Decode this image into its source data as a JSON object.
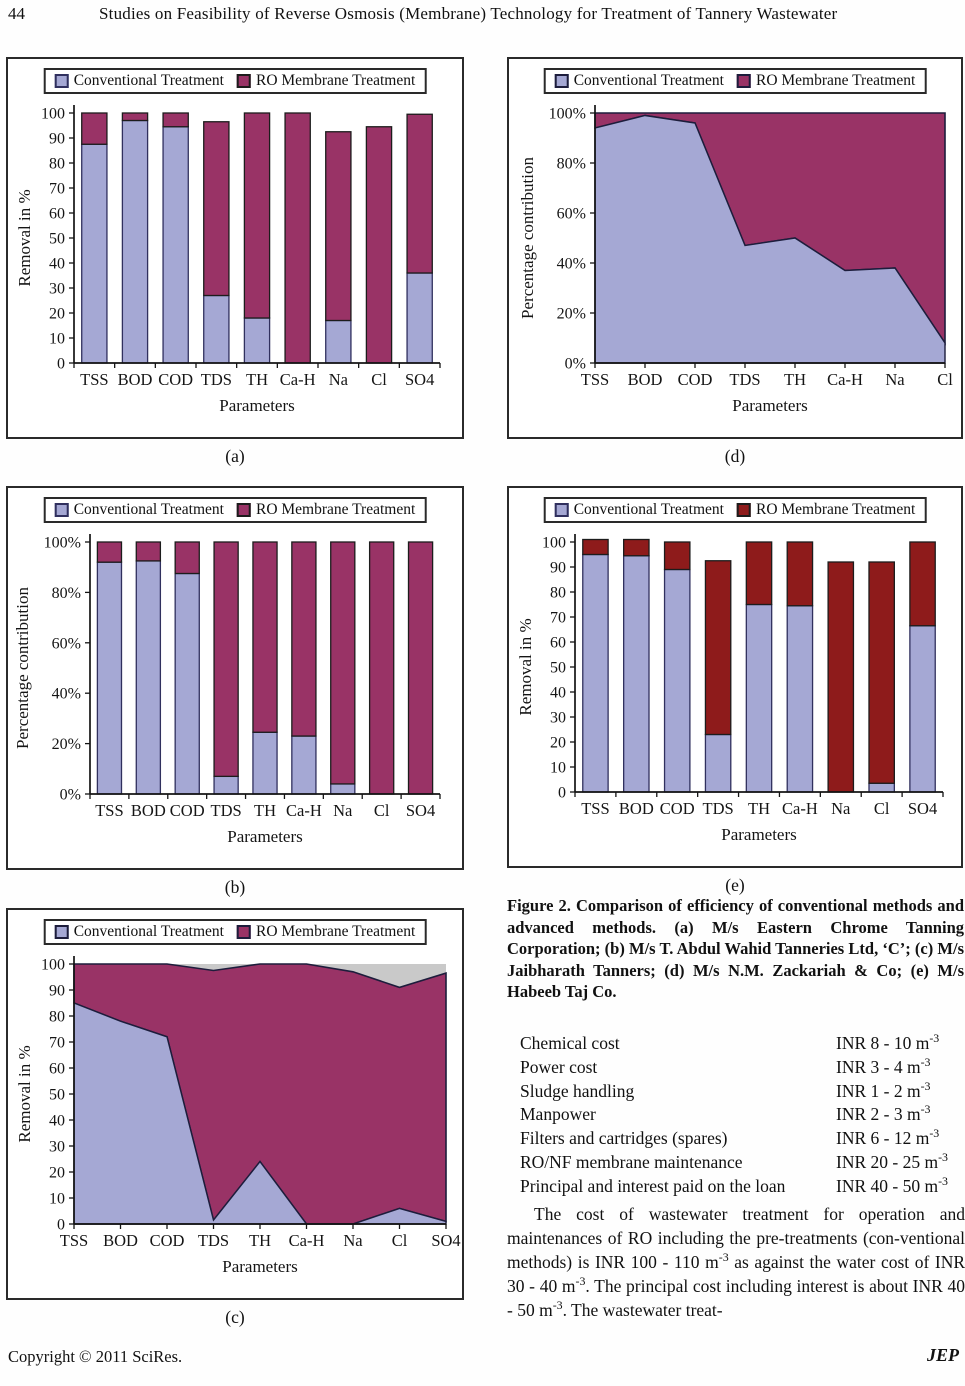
{
  "header": {
    "page_number": "44",
    "title": "Studies on Feasibility of Reverse Osmosis (Membrane) Technology for Treatment of Tannery Wastewater"
  },
  "figure_caption": "Figure 2. Comparison of efficiency of conventional methods and advanced methods. (a) M/s Eastern Chrome Tanning Corporation; (b) M/s T. Abdul Wahid Tanneries Ltd, ‘C’; (c) M/s Jaibharath Tanners; (d) M/s N.M. Zackariah & Co; (e) M/s Habeeb Taj Co.",
  "cost_table": {
    "rows": [
      {
        "item": "Chemical cost",
        "value": "INR 8 - 10 m",
        "sup": "-3"
      },
      {
        "item": "Power cost",
        "value": "INR 3 - 4 m",
        "sup": "-3"
      },
      {
        "item": "Sludge handling",
        "value": "INR 1 - 2 m",
        "sup": "-3"
      },
      {
        "item": "Manpower",
        "value": "INR 2 - 3 m",
        "sup": "-3"
      },
      {
        "item": "Filters and cartridges (spares)",
        "value": "INR 6 - 12 m",
        "sup": "-3"
      },
      {
        "item": "RO/NF membrane maintenance",
        "value": "INR 20 - 25 m",
        "sup": "-3"
      },
      {
        "item": "Principal and interest paid on the loan",
        "value": "INR 40 - 50 m",
        "sup": "-3"
      }
    ]
  },
  "paragraph": {
    "segments": [
      {
        "t": "The cost of wastewater treatment for operation and maintenances of RO including the pre-treatments (con-ventional methods) is INR 100 - 110 m",
        "sup": false
      },
      {
        "t": "-3",
        "sup": true
      },
      {
        "t": " as against the water cost of INR 30 - 40 m",
        "sup": false
      },
      {
        "t": "-3",
        "sup": true
      },
      {
        "t": ". The principal cost including interest is about INR 40 - 50 m",
        "sup": false
      },
      {
        "t": "-3",
        "sup": true
      },
      {
        "t": ". The wastewater treat-",
        "sup": false
      }
    ]
  },
  "footer": {
    "copyright": "Copyright © 2011 SciRes.",
    "journal": "JEP"
  },
  "chart_data": [
    {
      "panel": "(a)",
      "type": "bar",
      "subtype": "stacked-bar",
      "ylabel": "Removal in %",
      "xlabel": "Parameters",
      "ylim": [
        0,
        100
      ],
      "grid": false,
      "legend_position": "top",
      "categories": [
        "TSS",
        "BOD",
        "COD",
        "TDS",
        "TH",
        "Ca-H",
        "Na",
        "Cl",
        "SO4"
      ],
      "ytick_labels": [
        "0",
        "10",
        "20",
        "30",
        "40",
        "50",
        "60",
        "70",
        "80",
        "90",
        "100"
      ],
      "ymax": 100,
      "series": [
        {
          "name": "Conventional Treatment",
          "color": "#a5a8d4",
          "border": "#30305e",
          "values": [
            87.5,
            97,
            94.5,
            27,
            18,
            0,
            17,
            0,
            36
          ]
        },
        {
          "name": "RO Membrane Treatment",
          "color": "#993366",
          "border": "#1c1c1c",
          "values": [
            12.5,
            3,
            5.5,
            69.5,
            82,
            100,
            75.5,
            94.5,
            63.5
          ]
        }
      ]
    },
    {
      "panel": "(b)",
      "type": "bar",
      "subtype": "stacked-bar-100pct",
      "ylabel": "Percentage contribution",
      "xlabel": "Parameters",
      "ylim": [
        0,
        100
      ],
      "grid": false,
      "legend_position": "top",
      "categories": [
        "TSS",
        "BOD",
        "COD",
        "TDS",
        "TH",
        "Ca-H",
        "Na",
        "Cl",
        "SO4"
      ],
      "ytick_labels": [
        "0%",
        "20%",
        "40%",
        "60%",
        "80%",
        "100%"
      ],
      "ymax": 100,
      "series": [
        {
          "name": "Conventional Treatment",
          "color": "#a5a8d4",
          "border": "#30305e",
          "values": [
            92,
            92.5,
            87.5,
            7,
            24.5,
            23,
            4,
            0,
            0
          ]
        },
        {
          "name": "RO Membrane Treatment",
          "color": "#993366",
          "border": "#1c1c1c",
          "values": [
            8,
            7.5,
            12.5,
            93,
            75.5,
            77,
            96,
            100,
            100
          ]
        }
      ]
    },
    {
      "panel": "(c)",
      "type": "area",
      "subtype": "stacked-area",
      "ylabel": "Removal in %",
      "xlabel": "Parameters",
      "ylim": [
        0,
        100
      ],
      "grid": false,
      "legend_position": "top",
      "plot_bg": "#c9c9c9",
      "categories": [
        "TSS",
        "BOD",
        "COD",
        "TDS",
        "TH",
        "Ca-H",
        "Na",
        "Cl",
        "SO4"
      ],
      "ytick_labels": [
        "0",
        "10",
        "20",
        "30",
        "40",
        "50",
        "60",
        "70",
        "80",
        "90",
        "100"
      ],
      "ymax": 100,
      "series": [
        {
          "name": "Conventional Treatment",
          "color": "#a5a8d4",
          "border": "#1d1d3c",
          "values": [
            85,
            78,
            72,
            1.5,
            24,
            0,
            0,
            6,
            1
          ]
        },
        {
          "name": "RO Membrane Treatment",
          "color": "#993366",
          "border": "#1d1d3c",
          "values": [
            15,
            22,
            28,
            96,
            76,
            100,
            97,
            85,
            95.5
          ]
        }
      ]
    },
    {
      "panel": "(d)",
      "type": "area",
      "subtype": "stacked-area-100pct",
      "ylabel": "Percentage contribution",
      "xlabel": "Parameters",
      "ylim": [
        0,
        100
      ],
      "grid": false,
      "legend_position": "top",
      "categories": [
        "TSS",
        "BOD",
        "COD",
        "TDS",
        "TH",
        "Ca-H",
        "Na",
        "Cl"
      ],
      "ytick_labels": [
        "0%",
        "20%",
        "40%",
        "60%",
        "80%",
        "100%"
      ],
      "ymax": 100,
      "series": [
        {
          "name": "Conventional Treatment",
          "color": "#a5a8d4",
          "border": "#1d1d3c",
          "values": [
            94,
            99,
            96,
            47,
            50,
            37,
            38,
            8
          ]
        },
        {
          "name": "RO Membrane Treatment",
          "color": "#993366",
          "border": "#1d1d3c",
          "values": [
            6,
            1,
            4,
            53,
            50,
            63,
            62,
            92
          ]
        }
      ]
    },
    {
      "panel": "(e)",
      "type": "bar",
      "subtype": "stacked-bar",
      "ylabel": "Removal in %",
      "xlabel": "Parameters",
      "ylim": [
        0,
        100
      ],
      "grid": false,
      "legend_position": "top",
      "categories": [
        "TSS",
        "BOD",
        "COD",
        "TDS",
        "TH",
        "Ca-H",
        "Na",
        "Cl",
        "SO4"
      ],
      "ytick_labels": [
        "0",
        "10",
        "20",
        "30",
        "40",
        "50",
        "60",
        "70",
        "80",
        "90",
        "100"
      ],
      "ymax": 100,
      "series": [
        {
          "name": "Conventional Treatment",
          "color": "#a5a8d4",
          "border": "#30305e",
          "values": [
            95,
            94.5,
            89,
            23,
            75,
            74.5,
            0,
            3.5,
            66.5
          ]
        },
        {
          "name": "RO Membrane Treatment",
          "color": "#8e1b1b",
          "border": "#1c1c1c",
          "values": [
            6,
            6.5,
            11,
            69.5,
            25,
            25.5,
            92,
            88.5,
            33.5
          ]
        }
      ]
    }
  ]
}
